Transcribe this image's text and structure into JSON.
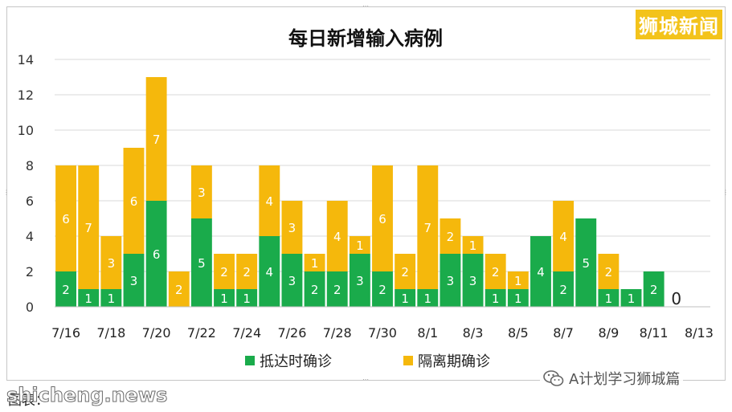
{
  "chart_data": {
    "type": "bar",
    "stacked": true,
    "title": "每日新增输入病例",
    "ylim": [
      0,
      14
    ],
    "yticks": [
      0,
      2,
      4,
      6,
      8,
      10,
      12,
      14
    ],
    "categories": [
      "7/16",
      "7/17",
      "7/18",
      "7/19",
      "7/20",
      "7/21",
      "7/22",
      "7/23",
      "7/24",
      "7/25",
      "7/26",
      "7/27",
      "7/28",
      "7/29",
      "7/30",
      "7/31",
      "8/1",
      "8/2",
      "8/3",
      "8/4",
      "8/5",
      "8/6",
      "8/7",
      "8/8",
      "8/9",
      "8/10",
      "8/11",
      "8/12",
      "8/13"
    ],
    "xticklabels": [
      "7/16",
      "7/18",
      "7/20",
      "7/22",
      "7/24",
      "7/26",
      "7/28",
      "7/30",
      "8/1",
      "8/3",
      "8/5",
      "8/7",
      "8/9",
      "8/11",
      "8/13"
    ],
    "series": [
      {
        "name": "抵达时确诊",
        "color": "#1aab4b",
        "values": [
          2,
          1,
          1,
          3,
          6,
          0,
          5,
          1,
          1,
          4,
          3,
          2,
          2,
          3,
          2,
          1,
          1,
          3,
          3,
          1,
          1,
          4,
          2,
          5,
          1,
          1,
          2,
          0,
          null
        ]
      },
      {
        "name": "隔离期确诊",
        "color": "#f5b80c",
        "values": [
          6,
          7,
          3,
          6,
          7,
          2,
          3,
          2,
          2,
          4,
          3,
          1,
          4,
          1,
          6,
          2,
          7,
          2,
          1,
          2,
          1,
          0,
          4,
          0,
          2,
          0,
          0,
          0,
          null
        ]
      }
    ],
    "annotations": [
      {
        "category": "8/12",
        "text": "0"
      }
    ],
    "legend": "bottom",
    "grid": true
  },
  "watermarks": {
    "brand": "狮城新闻",
    "wechat": "A计划学习狮城篇",
    "caption": "图表：",
    "site": "shicheng.news"
  },
  "colors": {
    "arrival": "#1aab4b",
    "quarantine": "#f5b80c",
    "brand_bg": "#f3c31b"
  }
}
